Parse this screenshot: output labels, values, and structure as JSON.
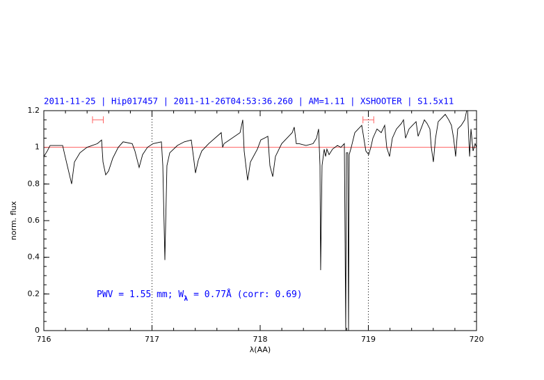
{
  "chart_data": {
    "type": "line",
    "title": "2011-11-25 | Hip017457 | 2011-11-26T04:53:36.260 | AM=1.11 | XSHOOTER | S1.5x11",
    "annotation": [
      "PWV = 1.55 mm; W",
      "λ",
      " = 0.77Å  (corr: 0.69)"
    ],
    "xlabel": "λ(AA)",
    "ylabel": "norm. flux",
    "xlim": [
      716,
      720
    ],
    "ylim": [
      0,
      1.2
    ],
    "xticks": [
      716,
      717,
      718,
      719,
      720
    ],
    "yticks": [
      0,
      0.2,
      0.4,
      0.6,
      0.8,
      1,
      1.2
    ],
    "xminor": 0.2,
    "yminor": 0.05,
    "hlines": [
      {
        "y": 1,
        "color": "#ff6060"
      }
    ],
    "vlines": [
      717,
      719
    ],
    "ranges": [
      {
        "x": [
          716.45,
          716.55
        ],
        "y": 1.15,
        "color": "#ff6060"
      },
      {
        "x": [
          718.95,
          719.05
        ],
        "y": 1.15,
        "color": "#ff6060"
      }
    ],
    "x": [
      716.0,
      716.032,
      716.058,
      716.174,
      716.193,
      716.225,
      716.257,
      716.283,
      716.334,
      716.399,
      716.495,
      716.534,
      716.547,
      716.572,
      716.598,
      716.637,
      716.688,
      716.733,
      716.817,
      716.842,
      716.881,
      716.913,
      716.958,
      717.01,
      717.087,
      717.1,
      717.119,
      717.138,
      717.164,
      717.235,
      717.299,
      717.363,
      717.383,
      717.402,
      717.428,
      717.46,
      717.524,
      717.64,
      717.653,
      717.666,
      717.814,
      717.839,
      717.852,
      717.884,
      717.91,
      717.974,
      718.006,
      718.071,
      718.09,
      718.116,
      718.141,
      718.199,
      718.264,
      718.296,
      718.315,
      718.334,
      718.36,
      718.424,
      718.489,
      718.521,
      718.54,
      718.553,
      718.559,
      718.572,
      718.592,
      718.605,
      718.617,
      718.637,
      718.669,
      718.714,
      718.746,
      718.778,
      718.791,
      718.797,
      718.81,
      718.817,
      718.823,
      718.842,
      718.875,
      718.907,
      718.939,
      718.958,
      718.977,
      719.003,
      719.023,
      719.042,
      719.08,
      719.119,
      719.151,
      719.17,
      719.196,
      719.222,
      719.26,
      719.305,
      719.325,
      719.344,
      719.376,
      719.408,
      719.441,
      719.46,
      719.486,
      719.518,
      719.543,
      719.569,
      719.582,
      719.601,
      719.621,
      719.646,
      719.711,
      719.743,
      719.768,
      719.788,
      719.807,
      719.826,
      719.859,
      719.891,
      719.916,
      719.936,
      719.949,
      719.968,
      719.987,
      720.0
    ],
    "series": [
      {
        "name": "flux",
        "color": "#000000",
        "values": [
          0.95,
          0.98,
          1.01,
          1.01,
          0.96,
          0.88,
          0.8,
          0.92,
          0.97,
          1.0,
          1.02,
          1.04,
          0.92,
          0.85,
          0.87,
          0.94,
          1.0,
          1.03,
          1.02,
          0.98,
          0.89,
          0.96,
          1.0,
          1.02,
          1.03,
          0.9,
          0.385,
          0.9,
          0.97,
          1.01,
          1.03,
          1.04,
          0.95,
          0.86,
          0.93,
          0.98,
          1.02,
          1.08,
          1.0,
          1.02,
          1.08,
          1.15,
          0.98,
          0.82,
          0.92,
          0.99,
          1.04,
          1.06,
          0.9,
          0.84,
          0.95,
          1.02,
          1.06,
          1.08,
          1.11,
          1.02,
          1.02,
          1.01,
          1.02,
          1.05,
          1.1,
          0.9,
          0.33,
          0.9,
          0.99,
          0.95,
          0.99,
          0.96,
          0.99,
          1.01,
          1.0,
          1.02,
          0,
          0.97,
          0.97,
          0,
          0.96,
          1.0,
          1.08,
          1.1,
          1.12,
          1.05,
          0.98,
          0.96,
          1.0,
          1.05,
          1.1,
          1.08,
          1.12,
          1.0,
          0.95,
          1.05,
          1.1,
          1.13,
          1.15,
          1.05,
          1.1,
          1.12,
          1.14,
          1.06,
          1.1,
          1.15,
          1.13,
          1.1,
          1.0,
          0.92,
          1.05,
          1.14,
          1.18,
          1.15,
          1.12,
          1.05,
          0.95,
          1.1,
          1.12,
          1.15,
          1.22,
          0.95,
          1.1,
          0.98,
          1.02,
          1.0
        ]
      }
    ]
  }
}
